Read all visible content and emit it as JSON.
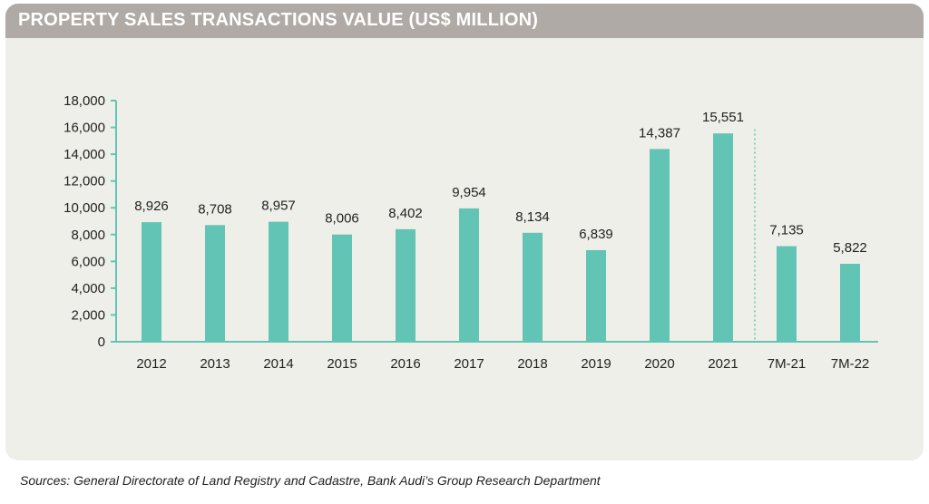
{
  "title": "PROPERTY SALES TRANSACTIONS VALUE (US$ MILLION)",
  "source": "Sources: General Directorate of Land Registry and Cadastre, Bank Audi’s Group Research Department",
  "colors": {
    "bar": "#62c4b4",
    "axis": "#62c4b4",
    "header": "#b0aaa6",
    "card": "#efefe9",
    "text": "#222222"
  },
  "chart_data": {
    "type": "bar",
    "title": "PROPERTY SALES TRANSACTIONS VALUE (US$ MILLION)",
    "xlabel": "",
    "ylabel": "",
    "ylim": [
      0,
      18000
    ],
    "yticks": [
      0,
      2000,
      4000,
      6000,
      8000,
      10000,
      12000,
      14000,
      16000,
      18000
    ],
    "ytick_labels": [
      "0",
      "2,000",
      "4,000",
      "6,000",
      "8,000",
      "10,000",
      "12,000",
      "14,000",
      "16,000",
      "18,000"
    ],
    "categories": [
      "2012",
      "2013",
      "2014",
      "2015",
      "2016",
      "2017",
      "2018",
      "2019",
      "2020",
      "2021",
      "7M-21",
      "7M-22"
    ],
    "values": [
      8926,
      8708,
      8957,
      8006,
      8402,
      9954,
      8134,
      6839,
      14387,
      15551,
      7135,
      5822
    ],
    "value_labels": [
      "8,926",
      "8,708",
      "8,957",
      "8,006",
      "8,402",
      "9,954",
      "8,134",
      "6,839",
      "14,387",
      "15,551",
      "7,135",
      "5,822"
    ],
    "separator_after_category": "2021",
    "grid": false,
    "legend": "none"
  }
}
